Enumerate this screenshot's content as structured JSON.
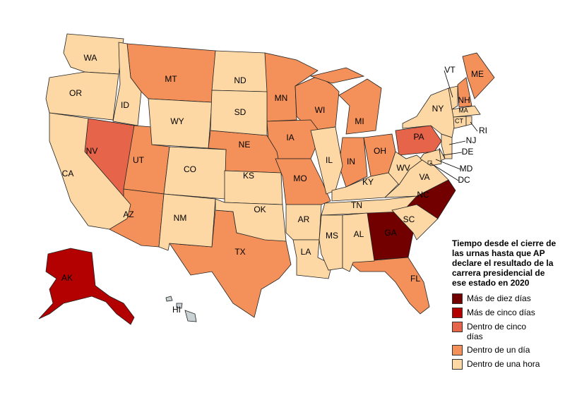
{
  "legend": {
    "title": "Tiempo desde el cierre de las urnas hasta que AP declare el resultado de la carrera presidencial de ese estado en 2020",
    "items": [
      {
        "label": "Más de diez días",
        "color": "#730000",
        "states": [
          "GA",
          "NC"
        ]
      },
      {
        "label": "Más de cinco días",
        "color": "#b30000",
        "states": [
          "AK"
        ]
      },
      {
        "label": "Dentro de cinco días",
        "color": "#e6654a",
        "states": [
          "NV",
          "PA"
        ]
      },
      {
        "label": "Dentro de un día",
        "color": "#f4915a",
        "states": [
          "MT",
          "MN",
          "WI",
          "MI",
          "IA",
          "NE",
          "UT",
          "AZ",
          "TX",
          "MO",
          "IN",
          "OH",
          "FL",
          "ME",
          "NH"
        ]
      },
      {
        "label": "Dentro de una hora",
        "color": "#fdd8a4",
        "states": [
          "WA",
          "OR",
          "CA",
          "ID",
          "WY",
          "ND",
          "SD",
          "CO",
          "KS",
          "NM",
          "OK",
          "IL",
          "KY",
          "TN",
          "AR",
          "LA",
          "MS",
          "AL",
          "SC",
          "WV",
          "VA",
          "NY",
          "VT",
          "MA",
          "CT",
          "RI",
          "NJ",
          "DE",
          "MD",
          "DC"
        ]
      }
    ]
  },
  "no_data": {
    "color": "#c9d1d5",
    "states": [
      "HI"
    ]
  }
}
